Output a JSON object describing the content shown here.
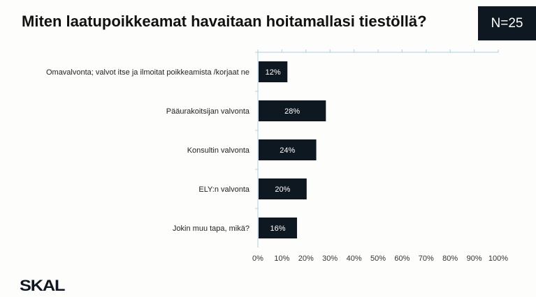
{
  "title": "Miten laatupoikkeamat havaitaan hoitamallasi tiestöllä?",
  "n_label": "N=25",
  "logo": "SKAL",
  "colors": {
    "bar": "#0e1820",
    "axis": "#a9cfe8"
  },
  "chart_data": {
    "type": "bar",
    "orientation": "horizontal",
    "categories": [
      "Omavalvonta; valvot itse ja ilmoitat poikkeamista /korjaat ne",
      "Pääurakoitsijan valvonta",
      "Konsultin valvonta",
      "ELY:n valvonta",
      "Jokin muu tapa, mikä?"
    ],
    "values": [
      12,
      28,
      24,
      20,
      16
    ],
    "data_labels": [
      "12%",
      "28%",
      "24%",
      "20%",
      "16%"
    ],
    "xlim": [
      0,
      100
    ],
    "x_ticks": [
      "0%",
      "10%",
      "20%",
      "30%",
      "40%",
      "50%",
      "60%",
      "70%",
      "80%",
      "90%",
      "100%"
    ],
    "grid": false
  }
}
